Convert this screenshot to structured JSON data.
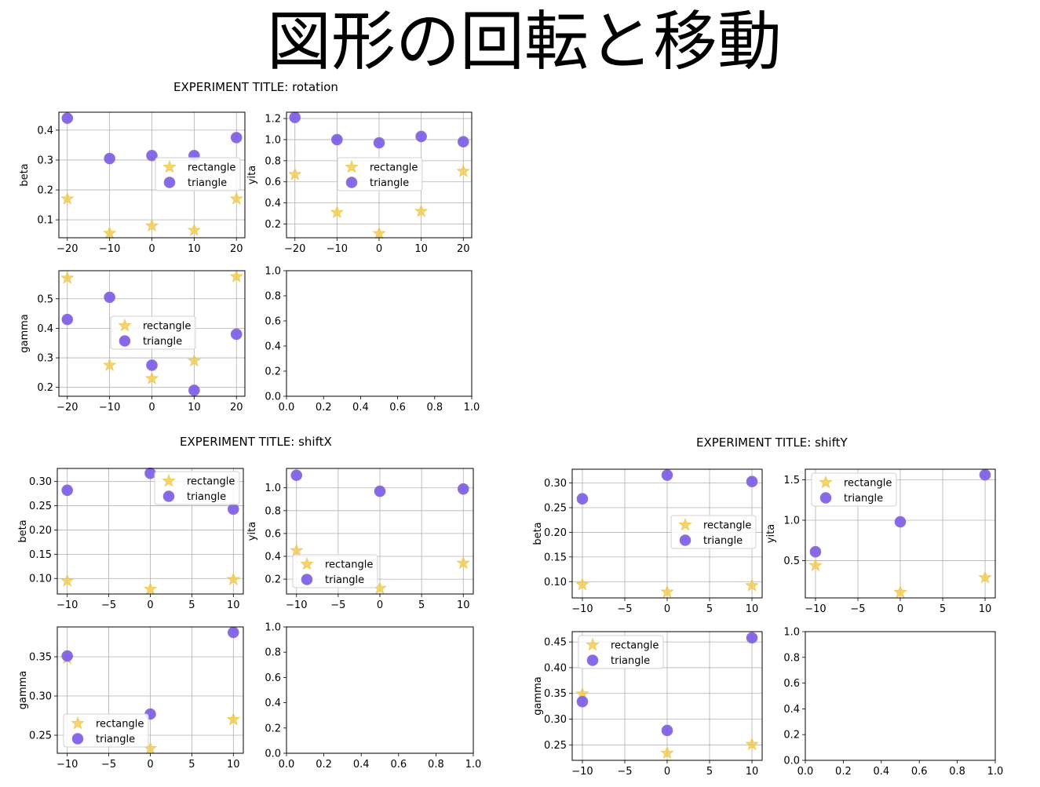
{
  "page_title": "図形の回転と移動",
  "markers": {
    "rectangle_color": "#f0c94e",
    "triangle_color": "#7b5ce6",
    "triangle_edge": "#8f6fd9"
  },
  "experiments": [
    {
      "title": "EXPERIMENT TITLE: rotation"
    },
    {
      "title": "EXPERIMENT TITLE: shiftX"
    },
    {
      "title": "EXPERIMENT TITLE: shiftY"
    }
  ],
  "chart_data": [
    {
      "experiment": "EXPERIMENT TITLE: rotation",
      "type": "scatter",
      "ylabel": "beta",
      "legend": "center-right",
      "x": [
        -20,
        -10,
        0,
        10,
        20
      ],
      "xlim": [
        -22,
        22
      ],
      "xticks": [
        -20,
        -10,
        0,
        10,
        20
      ],
      "ylim": [
        0.04,
        0.46
      ],
      "yticks": [
        0.1,
        0.2,
        0.3,
        0.4
      ],
      "grid": true,
      "series": [
        {
          "name": "rectangle",
          "marker": "star",
          "values": [
            0.17,
            0.055,
            0.08,
            0.065,
            0.17
          ]
        },
        {
          "name": "triangle",
          "marker": "circle",
          "values": [
            0.44,
            0.305,
            0.315,
            0.315,
            0.375
          ]
        }
      ]
    },
    {
      "experiment": "EXPERIMENT TITLE: rotation",
      "type": "scatter",
      "ylabel": "yita",
      "legend": "center",
      "x": [
        -20,
        -10,
        0,
        10,
        20
      ],
      "xlim": [
        -22,
        22
      ],
      "xticks": [
        -20,
        -10,
        0,
        10,
        20
      ],
      "ylim": [
        0.07,
        1.26
      ],
      "yticks": [
        0.2,
        0.4,
        0.6,
        0.8,
        1.0,
        1.2
      ],
      "grid": true,
      "series": [
        {
          "name": "rectangle",
          "marker": "star",
          "values": [
            0.67,
            0.31,
            0.11,
            0.32,
            0.7
          ]
        },
        {
          "name": "triangle",
          "marker": "circle",
          "values": [
            1.21,
            1.0,
            0.97,
            1.03,
            0.98
          ]
        }
      ]
    },
    {
      "experiment": "EXPERIMENT TITLE: rotation",
      "type": "scatter",
      "ylabel": "gamma",
      "legend": "center",
      "x": [
        -20,
        -10,
        0,
        10,
        20
      ],
      "xlim": [
        -22,
        22
      ],
      "xticks": [
        -20,
        -10,
        0,
        10,
        20
      ],
      "ylim": [
        0.17,
        0.595
      ],
      "yticks": [
        0.2,
        0.3,
        0.4,
        0.5
      ],
      "grid": true,
      "series": [
        {
          "name": "rectangle",
          "marker": "star",
          "values": [
            0.57,
            0.275,
            0.23,
            0.29,
            0.575
          ]
        },
        {
          "name": "triangle",
          "marker": "circle",
          "values": [
            0.43,
            0.505,
            0.275,
            0.19,
            0.38
          ]
        }
      ]
    },
    {
      "experiment": "EXPERIMENT TITLE: rotation",
      "type": "scatter",
      "empty": true,
      "xlim": [
        0,
        1
      ],
      "xticks": [
        0.0,
        0.2,
        0.4,
        0.6,
        0.8,
        1.0
      ],
      "ylim": [
        0,
        1
      ],
      "yticks": [
        0.0,
        0.2,
        0.4,
        0.6,
        0.8,
        1.0
      ],
      "grid": false,
      "series": []
    },
    {
      "experiment": "EXPERIMENT TITLE: shiftX",
      "type": "scatter",
      "ylabel": "beta",
      "legend": "top-right",
      "x": [
        -10,
        0,
        10
      ],
      "xlim": [
        -11.2,
        11.2
      ],
      "xticks": [
        -10,
        -5,
        0,
        5,
        10
      ],
      "ylim": [
        0.068,
        0.327
      ],
      "yticks": [
        0.1,
        0.15,
        0.2,
        0.25,
        0.3
      ],
      "grid": true,
      "series": [
        {
          "name": "rectangle",
          "marker": "star",
          "values": [
            0.095,
            0.078,
            0.098
          ]
        },
        {
          "name": "triangle",
          "marker": "circle",
          "values": [
            0.282,
            0.317,
            0.243
          ]
        }
      ]
    },
    {
      "experiment": "EXPERIMENT TITLE: shiftX",
      "type": "scatter",
      "ylabel": "yita",
      "legend": "lower-left",
      "x": [
        -10,
        0,
        10
      ],
      "xlim": [
        -11.2,
        11.2
      ],
      "xticks": [
        -10,
        -5,
        0,
        5,
        10
      ],
      "ylim": [
        0.07,
        1.17
      ],
      "yticks": [
        0.2,
        0.4,
        0.6,
        0.8,
        1.0
      ],
      "grid": true,
      "series": [
        {
          "name": "rectangle",
          "marker": "star",
          "values": [
            0.45,
            0.12,
            0.34
          ]
        },
        {
          "name": "triangle",
          "marker": "circle",
          "values": [
            1.11,
            0.97,
            0.99
          ]
        }
      ]
    },
    {
      "experiment": "EXPERIMENT TITLE: shiftX",
      "type": "scatter",
      "ylabel": "gamma",
      "legend": "lower-left",
      "x": [
        -10,
        0,
        10
      ],
      "xlim": [
        -11.2,
        11.2
      ],
      "xticks": [
        -10,
        -5,
        0,
        5,
        10
      ],
      "ylim": [
        0.227,
        0.388
      ],
      "yticks": [
        0.25,
        0.3,
        0.35
      ],
      "grid": true,
      "series": [
        {
          "name": "rectangle",
          "marker": "star",
          "values": [
            0.348,
            0.233,
            0.27
          ]
        },
        {
          "name": "triangle",
          "marker": "circle",
          "values": [
            0.351,
            0.277,
            0.381
          ]
        }
      ]
    },
    {
      "experiment": "EXPERIMENT TITLE: shiftX",
      "type": "scatter",
      "empty": true,
      "xlim": [
        0,
        1
      ],
      "xticks": [
        0.0,
        0.2,
        0.4,
        0.6,
        0.8,
        1.0
      ],
      "ylim": [
        0,
        1
      ],
      "yticks": [
        0.0,
        0.2,
        0.4,
        0.6,
        0.8,
        1.0
      ],
      "grid": false,
      "series": []
    },
    {
      "experiment": "EXPERIMENT TITLE: shiftY",
      "type": "scatter",
      "ylabel": "beta",
      "legend": "center-right",
      "x": [
        -10,
        0,
        10
      ],
      "xlim": [
        -11.2,
        11.2
      ],
      "xticks": [
        -10,
        -5,
        0,
        5,
        10
      ],
      "ylim": [
        0.067,
        0.328
      ],
      "yticks": [
        0.1,
        0.15,
        0.2,
        0.25,
        0.3
      ],
      "grid": true,
      "series": [
        {
          "name": "rectangle",
          "marker": "star",
          "values": [
            0.094,
            0.079,
            0.092
          ]
        },
        {
          "name": "triangle",
          "marker": "circle",
          "values": [
            0.268,
            0.316,
            0.303
          ]
        }
      ]
    },
    {
      "experiment": "EXPERIMENT TITLE: shiftY",
      "type": "scatter",
      "ylabel": "yita",
      "legend": "top-left",
      "x": [
        -10,
        0,
        10
      ],
      "xlim": [
        -11.2,
        11.2
      ],
      "xticks": [
        -10,
        -5,
        0,
        5,
        10
      ],
      "ylim": [
        0.04,
        1.63
      ],
      "yticks": [
        0.5,
        1.0,
        1.5
      ],
      "grid": true,
      "series": [
        {
          "name": "rectangle",
          "marker": "star",
          "values": [
            0.44,
            0.11,
            0.29
          ]
        },
        {
          "name": "triangle",
          "marker": "circle",
          "values": [
            0.61,
            0.98,
            1.56
          ]
        }
      ]
    },
    {
      "experiment": "EXPERIMENT TITLE: shiftY",
      "type": "scatter",
      "ylabel": "gamma",
      "legend": "top-left",
      "x": [
        -10,
        0,
        10
      ],
      "xlim": [
        -11.2,
        11.2
      ],
      "xticks": [
        -10,
        -5,
        0,
        5,
        10
      ],
      "ylim": [
        0.22,
        0.47
      ],
      "yticks": [
        0.25,
        0.3,
        0.35,
        0.4,
        0.45
      ],
      "grid": true,
      "series": [
        {
          "name": "rectangle",
          "marker": "star",
          "values": [
            0.349,
            0.234,
            0.251
          ]
        },
        {
          "name": "triangle",
          "marker": "circle",
          "values": [
            0.334,
            0.278,
            0.458
          ]
        }
      ]
    },
    {
      "experiment": "EXPERIMENT TITLE: shiftY",
      "type": "scatter",
      "empty": true,
      "xlim": [
        0,
        1
      ],
      "xticks": [
        0.0,
        0.2,
        0.4,
        0.6,
        0.8,
        1.0
      ],
      "ylim": [
        0,
        1
      ],
      "yticks": [
        0.0,
        0.2,
        0.4,
        0.6,
        0.8,
        1.0
      ],
      "grid": false,
      "series": []
    }
  ]
}
